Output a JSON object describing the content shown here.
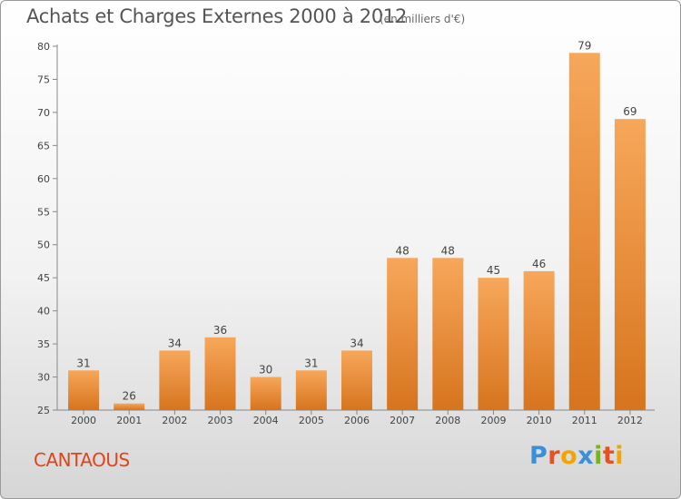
{
  "header": {
    "title": "Achats et Charges Externes 2000 à 2012",
    "unit": "(en milliers d'€)"
  },
  "footer": {
    "commune": "CANTAOUS",
    "logo": "Proxiti",
    "logo_colors": [
      "#3a8fd6",
      "#e8501e",
      "#f2a500",
      "#3a8fd6",
      "#7ab21e",
      "#e8501e",
      "#f2a500"
    ]
  },
  "chart_data": {
    "type": "bar",
    "title": "Achats et Charges Externes 2000 à 2012",
    "subtitle": "(en milliers d'€)",
    "categories": [
      "2000",
      "2001",
      "2002",
      "2003",
      "2004",
      "2005",
      "2006",
      "2007",
      "2008",
      "2009",
      "2010",
      "2011",
      "2012"
    ],
    "values": [
      31,
      26,
      34,
      36,
      30,
      31,
      34,
      48,
      48,
      45,
      46,
      79,
      69
    ],
    "data_labels": [
      "31",
      "26",
      "34",
      "36",
      "30",
      "31",
      "34",
      "48",
      "48",
      "45",
      "46",
      "79",
      "69"
    ],
    "ylim": [
      25,
      80
    ],
    "yticks": [
      25,
      30,
      35,
      40,
      45,
      50,
      55,
      60,
      65,
      70,
      75,
      80
    ],
    "ytick_labels": [
      "25",
      "30",
      "35",
      "40",
      "45",
      "50",
      "55",
      "60",
      "65",
      "70",
      "75",
      "80"
    ],
    "grid": false,
    "bar_color_top": "#f7a75a",
    "bar_color_bottom": "#d7741e"
  }
}
